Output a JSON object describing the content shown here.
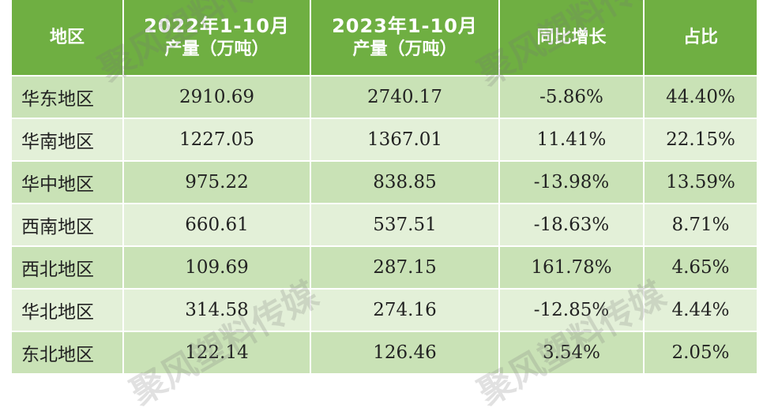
{
  "table": {
    "header": [
      "地区",
      [
        "2022年1-10月",
        "产量（万吨）"
      ],
      [
        "2023年1-10月",
        "产量（万吨）"
      ],
      "同比增长",
      "占比"
    ],
    "rows": [
      [
        "华东地区",
        "2910.69",
        "2740.17",
        "-5.86%",
        "44.40%"
      ],
      [
        "华南地区",
        "1227.05",
        "1367.01",
        "11.41%",
        "22.15%"
      ],
      [
        "华中地区",
        "975.22",
        "838.85",
        "-13.98%",
        "13.59%"
      ],
      [
        "西南地区",
        "660.61",
        "537.51",
        "-18.63%",
        "8.71%"
      ],
      [
        "西北地区",
        "109.69",
        "287.15",
        "161.78%",
        "4.65%"
      ],
      [
        "华北地区",
        "314.58",
        "274.16",
        "-12.85%",
        "4.44%"
      ],
      [
        "东北地区",
        "122.14",
        "126.46",
        "3.54%",
        "2.05%"
      ]
    ]
  },
  "watermark": "聚风塑料传媒"
}
